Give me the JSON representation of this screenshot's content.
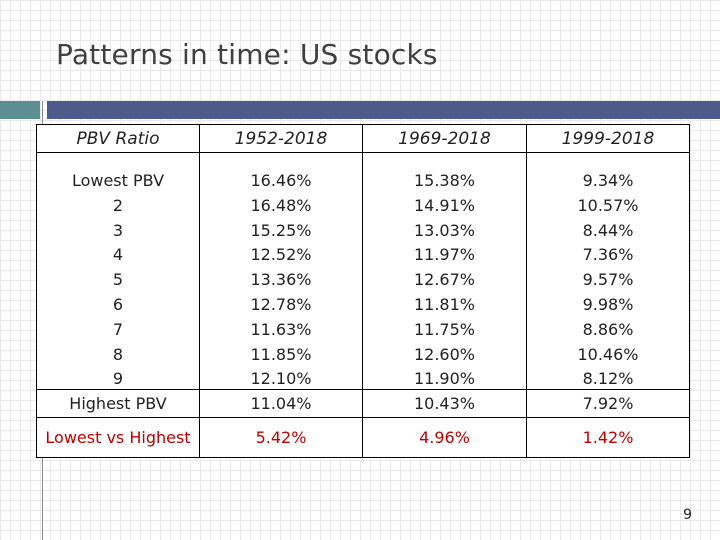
{
  "slide": {
    "title": "Patterns in time: US stocks",
    "page_number": "9",
    "accent_colors": {
      "teal": "#5b8f94",
      "navy": "#4d5a8a",
      "highlight": "#c00000"
    }
  },
  "table": {
    "headers": [
      "PBV Ratio",
      "1952-2018",
      "1969-2018",
      "1999-2018"
    ],
    "rows": {
      "labels": [
        "Lowest PBV",
        "2",
        "3",
        "4",
        "5",
        "6",
        "7",
        "8",
        "9"
      ],
      "p1952": [
        "16.46%",
        "16.48%",
        "15.25%",
        "12.52%",
        "13.36%",
        "12.78%",
        "11.63%",
        "11.85%",
        "12.10%"
      ],
      "p1969": [
        "15.38%",
        "14.91%",
        "13.03%",
        "11.97%",
        "12.67%",
        "11.81%",
        "11.75%",
        "12.60%",
        "11.90%"
      ],
      "p1999": [
        "9.34%",
        "10.57%",
        "8.44%",
        "7.36%",
        "9.57%",
        "9.98%",
        "8.86%",
        "10.46%",
        "8.12%"
      ]
    },
    "highest": {
      "label": "Highest PBV",
      "values": [
        "11.04%",
        "10.43%",
        "7.92%"
      ]
    },
    "spread": {
      "label": "Lowest vs Highest",
      "values": [
        "5.42%",
        "4.96%",
        "1.42%"
      ]
    }
  }
}
